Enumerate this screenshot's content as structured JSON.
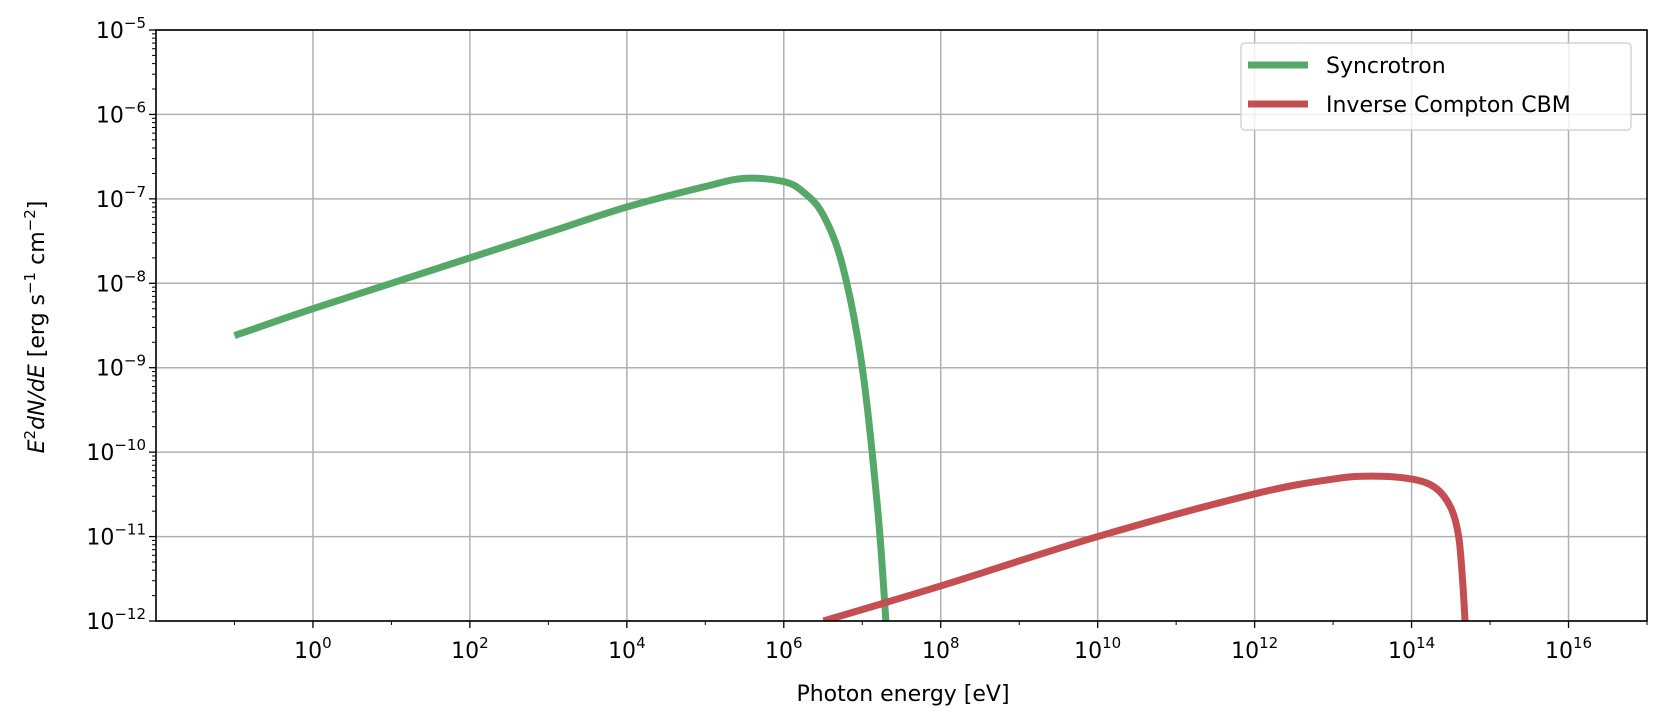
{
  "chart_data": {
    "type": "line",
    "title": "",
    "xlabel": "Photon energy [eV]",
    "ylabel": {
      "part1": "E",
      "part1_sup": "2",
      "part2": "dN/dE",
      "part3": " [erg s",
      "part3_sup": "−1",
      "part4": " cm",
      "part4_sup": "−2",
      "part5": "]"
    },
    "x_scale": "log",
    "y_scale": "log",
    "xlim": [
      0.01,
      1e+17
    ],
    "ylim": [
      1e-12,
      1e-05
    ],
    "x_ticks": [
      {
        "base": "10",
        "exp": "0",
        "value": 1
      },
      {
        "base": "10",
        "exp": "2",
        "value": 100
      },
      {
        "base": "10",
        "exp": "4",
        "value": 10000
      },
      {
        "base": "10",
        "exp": "6",
        "value": 1000000
      },
      {
        "base": "10",
        "exp": "8",
        "value": 100000000
      },
      {
        "base": "10",
        "exp": "10",
        "value": 10000000000
      },
      {
        "base": "10",
        "exp": "12",
        "value": 1000000000000
      },
      {
        "base": "10",
        "exp": "14",
        "value": 100000000000000
      },
      {
        "base": "10",
        "exp": "16",
        "value": 10000000000000000
      }
    ],
    "y_ticks": [
      {
        "base": "10",
        "exp": "−12",
        "value": 1e-12
      },
      {
        "base": "10",
        "exp": "−11",
        "value": 1e-11
      },
      {
        "base": "10",
        "exp": "−10",
        "value": 1e-10
      },
      {
        "base": "10",
        "exp": "−9",
        "value": 1e-09
      },
      {
        "base": "10",
        "exp": "−8",
        "value": 1e-08
      },
      {
        "base": "10",
        "exp": "−7",
        "value": 1e-07
      },
      {
        "base": "10",
        "exp": "−6",
        "value": 1e-06
      },
      {
        "base": "10",
        "exp": "−5",
        "value": 1e-05
      }
    ],
    "grid": true,
    "legend": {
      "position": "top-right"
    },
    "series": [
      {
        "name": "Syncrotron",
        "color": "#55a868",
        "points": [
          [
            0.1,
            2.4e-09
          ],
          [
            1,
            5e-09
          ],
          [
            10,
            1e-08
          ],
          [
            100,
            2e-08
          ],
          [
            1000,
            4e-08
          ],
          [
            10000,
            8e-08
          ],
          [
            100000,
            1.4e-07
          ],
          [
            316000,
            1.75e-07
          ],
          [
            1000000,
            1.6e-07
          ],
          [
            1780000,
            1.2e-07
          ],
          [
            3160000,
            6.5e-08
          ],
          [
            5620000,
            1.6e-08
          ],
          [
            10000000,
            1e-09
          ],
          [
            15800000,
            2e-11
          ],
          [
            20000000,
            1e-12
          ]
        ]
      },
      {
        "name": "Inverse Compton CBM",
        "color": "#c44e52",
        "points": [
          [
            3200000,
            1e-12
          ],
          [
            100000000,
            2.6e-12
          ],
          [
            10000000000,
            1e-11
          ],
          [
            1000000000000,
            3.2e-11
          ],
          [
            10000000000000,
            4.8e-11
          ],
          [
            31600000000000,
            5.2e-11
          ],
          [
            100000000000000,
            4.8e-11
          ],
          [
            200000000000000,
            3.8e-11
          ],
          [
            316000000000000,
            2.2e-11
          ],
          [
            398000000000000,
            1e-11
          ],
          [
            447000000000000,
            3e-12
          ],
          [
            480000000000000,
            1e-12
          ]
        ]
      }
    ]
  }
}
